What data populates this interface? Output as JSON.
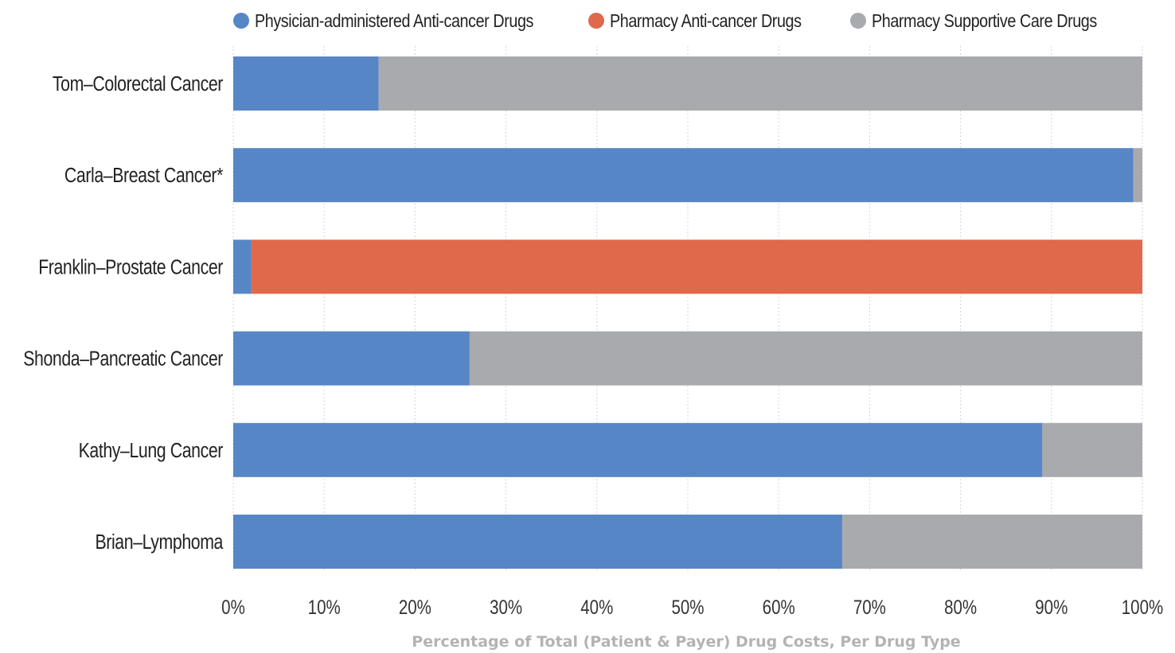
{
  "chart_data": {
    "type": "bar",
    "orientation": "horizontal",
    "stacked": true,
    "categories": [
      "Tom–Colorectal Cancer",
      "Carla–Breast Cancer*",
      "Franklin–Prostate Cancer",
      "Shonda–Pancreatic Cancer",
      "Kathy–Lung Cancer",
      "Brian–Lymphoma"
    ],
    "series": [
      {
        "name": "Physician-administered Anti-cancer Drugs",
        "color": "#5686c5",
        "values": [
          16,
          99,
          2,
          26,
          89,
          67
        ]
      },
      {
        "name": "Pharmacy Anti-cancer Drugs",
        "color": "#e0684b",
        "values": [
          0,
          0,
          98,
          0,
          0,
          0
        ]
      },
      {
        "name": "Pharmacy Supportive Care Drugs",
        "color": "#a9aaad",
        "values": [
          84,
          1,
          0,
          74,
          11,
          33
        ]
      }
    ],
    "xlim": [
      0,
      100
    ],
    "xticks": [
      "0%",
      "10%",
      "20%",
      "30%",
      "40%",
      "50%",
      "60%",
      "70%",
      "80%",
      "90%",
      "100%"
    ],
    "xlabel": "Percentage of Total (Patient & Payer) Drug Costs, Per Drug Type",
    "ylabel": "",
    "title": "",
    "grid": "vertical-dotted",
    "legend_position": "top"
  }
}
